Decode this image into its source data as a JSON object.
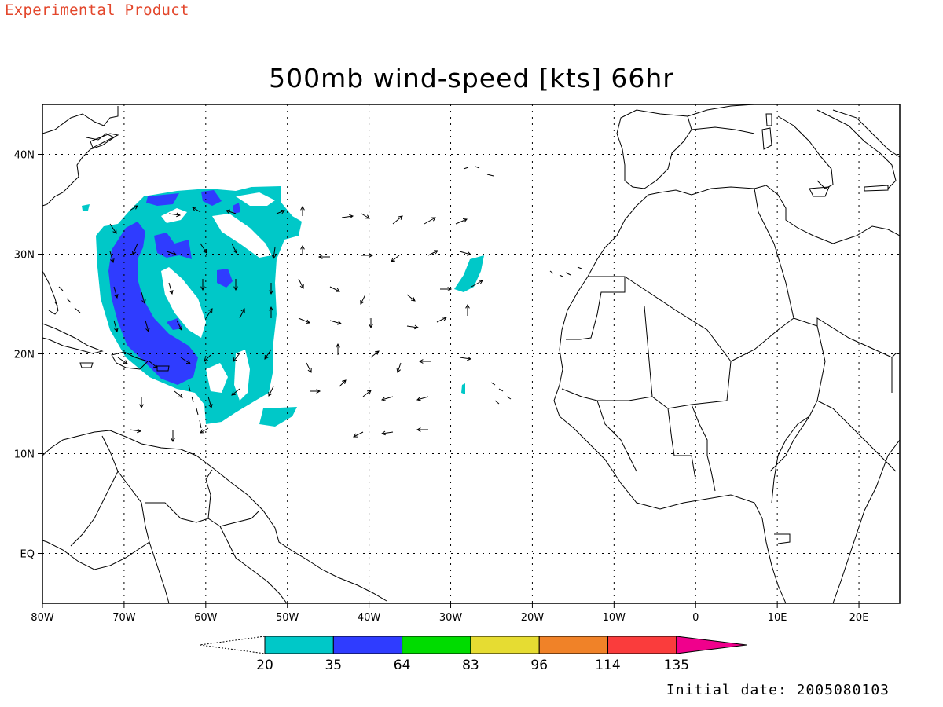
{
  "header": {
    "product_note": "Experimental Product",
    "title": "500mb wind-speed [kts] 66hr",
    "initial_date": "Initial date: 2005080103"
  },
  "map": {
    "lon_ticks": [
      "80W",
      "70W",
      "60W",
      "50W",
      "40W",
      "30W",
      "20W",
      "10W",
      "0",
      "10E",
      "20E"
    ],
    "lat_ticks": [
      "40N",
      "30N",
      "20N",
      "10N",
      "EQ"
    ],
    "lon_values": [
      -80,
      -70,
      -60,
      -50,
      -40,
      -30,
      -20,
      -10,
      0,
      10,
      20
    ],
    "lat_values": [
      40,
      30,
      20,
      10,
      0
    ],
    "lon_range": [
      -80,
      25
    ],
    "lat_range": [
      -5,
      45
    ],
    "grid": true
  },
  "colorbar": {
    "labels": [
      "20",
      "35",
      "64",
      "83",
      "96",
      "114",
      "135"
    ],
    "colors": [
      "#00c8c8",
      "#2f3cff",
      "#00dc00",
      "#e6dc32",
      "#f08228",
      "#fa3c3c",
      "#f0008c"
    ]
  }
}
